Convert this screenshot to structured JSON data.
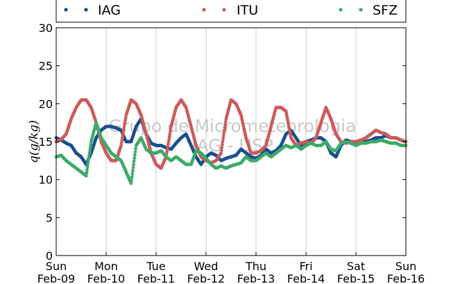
{
  "chart_data": {
    "type": "scatter",
    "ylabel": "q(g/kg)",
    "ylim": [
      0,
      30
    ],
    "yticks": [
      "0",
      "5",
      "10",
      "15",
      "20",
      "25",
      "30"
    ],
    "xlim": [
      0,
      7
    ],
    "xticks": [
      {
        "day": "Sun",
        "date": "Feb-09"
      },
      {
        "day": "Mon",
        "date": "Feb-10"
      },
      {
        "day": "Tue",
        "date": "Feb-11"
      },
      {
        "day": "Wed",
        "date": "Feb-12"
      },
      {
        "day": "Thu",
        "date": "Feb-13"
      },
      {
        "day": "Fri",
        "date": "Feb-14"
      },
      {
        "day": "Sat",
        "date": "Feb-15"
      },
      {
        "day": "Sun",
        "date": "Feb-16"
      }
    ],
    "grid": true,
    "legend_position": "top",
    "watermark": [
      "Grupo de Micrometeorologia",
      "IAG - USP"
    ],
    "series": [
      {
        "name": "IAG",
        "color": "#1a4f8e",
        "x": [
          0,
          0.1,
          0.2,
          0.3,
          0.4,
          0.5,
          0.6,
          0.7,
          0.8,
          0.9,
          1.0,
          1.1,
          1.2,
          1.3,
          1.4,
          1.5,
          1.6,
          1.7,
          1.8,
          1.9,
          2.0,
          2.1,
          2.2,
          2.3,
          2.4,
          2.5,
          2.6,
          2.7,
          2.8,
          2.9,
          3.0,
          3.1,
          3.2,
          3.3,
          3.4,
          3.5,
          3.6,
          3.7,
          3.8,
          3.9,
          4.0,
          4.1,
          4.2,
          4.3,
          4.4,
          4.5,
          4.6,
          4.7,
          4.8,
          4.9,
          5.0,
          5.1,
          5.2,
          5.3,
          5.4,
          5.5,
          5.6,
          5.7,
          5.8,
          5.9,
          6.0,
          6.1,
          6.2,
          6.3,
          6.4,
          6.5,
          6.6,
          6.7,
          6.8,
          6.9,
          7.0
        ],
        "y": [
          15.5,
          15.2,
          14.8,
          14.5,
          13.5,
          13.0,
          12.0,
          13.5,
          15.5,
          16.5,
          17.0,
          17.0,
          16.8,
          16.5,
          15.0,
          15.0,
          17.0,
          18.0,
          16.0,
          14.8,
          14.5,
          14.5,
          14.2,
          14.0,
          14.8,
          15.5,
          16.0,
          14.5,
          13.0,
          12.0,
          13.0,
          13.5,
          13.2,
          12.5,
          12.8,
          13.0,
          13.2,
          14.0,
          13.5,
          13.0,
          12.8,
          13.2,
          14.0,
          13.5,
          13.8,
          14.5,
          16.0,
          16.5,
          15.5,
          14.5,
          15.0,
          15.2,
          15.5,
          15.5,
          15.0,
          13.5,
          13.0,
          14.5,
          15.2,
          15.0,
          15.0,
          15.0,
          15.0,
          15.2,
          15.5,
          15.5,
          15.8,
          15.5,
          15.5,
          15.2,
          15.0
        ]
      },
      {
        "name": "ITU",
        "color": "#cc5b5b",
        "x": [
          0,
          0.1,
          0.2,
          0.3,
          0.4,
          0.5,
          0.6,
          0.7,
          0.8,
          0.9,
          1.0,
          1.1,
          1.2,
          1.3,
          1.4,
          1.5,
          1.6,
          1.7,
          1.8,
          1.9,
          2.0,
          2.1,
          2.2,
          2.3,
          2.4,
          2.5,
          2.6,
          2.7,
          2.8,
          2.9,
          3.0,
          3.1,
          3.2,
          3.3,
          3.4,
          3.5,
          3.6,
          3.7,
          3.8,
          3.9,
          4.0,
          4.1,
          4.2,
          4.3,
          4.4,
          4.5,
          4.6,
          4.7,
          4.8,
          4.9,
          5.0,
          5.1,
          5.2,
          5.3,
          5.4,
          5.5,
          5.6,
          5.7,
          5.8,
          5.9,
          6.0,
          6.1,
          6.2,
          6.3,
          6.4,
          6.5,
          6.6,
          6.7,
          6.8,
          6.9,
          7.0
        ],
        "y": [
          15.0,
          15.3,
          16.0,
          18.0,
          19.5,
          20.5,
          20.5,
          19.5,
          17.5,
          15.0,
          13.5,
          12.5,
          12.5,
          14.5,
          18.5,
          20.5,
          20.0,
          18.5,
          16.0,
          13.5,
          12.0,
          11.5,
          13.0,
          17.0,
          19.5,
          20.5,
          19.5,
          17.0,
          14.5,
          13.0,
          12.5,
          12.2,
          12.5,
          13.5,
          18.0,
          20.5,
          20.0,
          18.5,
          15.5,
          13.5,
          13.5,
          13.8,
          14.5,
          17.0,
          19.5,
          19.5,
          19.0,
          15.5,
          14.5,
          14.8,
          15.0,
          14.8,
          15.5,
          17.5,
          19.5,
          18.0,
          16.0,
          15.0,
          14.8,
          15.0,
          15.0,
          15.2,
          15.5,
          16.0,
          16.5,
          16.2,
          16.0,
          15.5,
          15.5,
          15.2,
          15.0
        ]
      },
      {
        "name": "SFZ",
        "color": "#3daa6a",
        "x": [
          0,
          0.1,
          0.2,
          0.3,
          0.4,
          0.5,
          0.6,
          0.7,
          0.8,
          0.9,
          1.0,
          1.1,
          1.2,
          1.3,
          1.4,
          1.5,
          1.6,
          1.7,
          1.8,
          1.9,
          2.0,
          2.1,
          2.2,
          2.3,
          2.4,
          2.5,
          2.6,
          2.7,
          2.8,
          2.9,
          3.0,
          3.1,
          3.2,
          3.3,
          3.4,
          3.5,
          3.6,
          3.7,
          3.8,
          3.9,
          4.0,
          4.1,
          4.2,
          4.3,
          4.4,
          4.5,
          4.6,
          4.7,
          4.8,
          4.9,
          5.0,
          5.1,
          5.2,
          5.3,
          5.4,
          5.5,
          5.6,
          5.7,
          5.8,
          5.9,
          6.0,
          6.1,
          6.2,
          6.3,
          6.4,
          6.5,
          6.6,
          6.7,
          6.8,
          6.9,
          7.0
        ],
        "y": [
          13.0,
          13.2,
          12.5,
          12.0,
          11.5,
          11.0,
          10.5,
          15.0,
          17.5,
          15.5,
          14.5,
          13.5,
          13.0,
          12.5,
          11.0,
          9.5,
          14.5,
          15.5,
          14.0,
          13.5,
          13.5,
          13.8,
          13.0,
          12.5,
          13.0,
          12.5,
          12.0,
          12.0,
          13.8,
          13.5,
          12.8,
          12.0,
          11.5,
          11.8,
          11.5,
          11.8,
          12.0,
          12.2,
          13.0,
          12.5,
          12.5,
          13.0,
          13.5,
          13.0,
          13.5,
          14.0,
          14.5,
          14.2,
          14.5,
          14.0,
          14.5,
          14.8,
          14.5,
          14.5,
          15.0,
          14.0,
          13.8,
          14.8,
          15.0,
          14.8,
          14.5,
          14.8,
          14.8,
          15.0,
          15.0,
          15.2,
          15.0,
          14.8,
          14.8,
          14.5,
          14.5
        ]
      }
    ]
  }
}
